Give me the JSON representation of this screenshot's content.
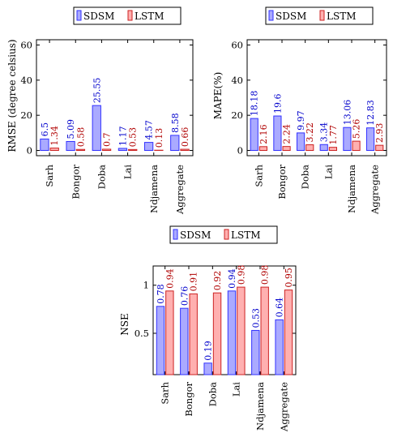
{
  "colors": {
    "sdsm_fill": "#aaaaff",
    "sdsm_stroke": "#3333ff",
    "sdsm_text": "#0000cc",
    "lstm_fill": "#ffb0b0",
    "lstm_stroke": "#cc2222",
    "lstm_text": "#b00000"
  },
  "chart_data": [
    {
      "type": "bar",
      "title": "",
      "ylabel": "RMSE (degree celsius)",
      "xlabel": "",
      "categories": [
        "Sarh",
        "Bongor",
        "Doba",
        "Lai",
        "Ndjamena",
        "Aggregate"
      ],
      "series": [
        {
          "name": "SDSM",
          "values": [
            6.5,
            5.09,
            25.55,
            1.17,
            4.57,
            8.58
          ]
        },
        {
          "name": "LSTM",
          "values": [
            1.34,
            0.58,
            0.7,
            0.53,
            0.13,
            0.66
          ]
        }
      ],
      "ylim": [
        -3,
        63
      ],
      "yticks": [
        0,
        20,
        40,
        60
      ],
      "legend": "top-center"
    },
    {
      "type": "bar",
      "title": "",
      "ylabel": "MAPE(%)",
      "xlabel": "",
      "categories": [
        "Sarh",
        "Bongor",
        "Doba",
        "Lai",
        "Ndjamena",
        "Aggregate"
      ],
      "series": [
        {
          "name": "SDSM",
          "values": [
            18.18,
            19.6,
            9.97,
            3.34,
            13.06,
            12.83
          ]
        },
        {
          "name": "LSTM",
          "values": [
            2.16,
            2.24,
            3.22,
            1.77,
            5.26,
            2.93
          ]
        }
      ],
      "ylim": [
        -3,
        63
      ],
      "yticks": [
        0,
        20,
        40,
        60
      ],
      "legend": "top-center"
    },
    {
      "type": "bar",
      "title": "",
      "ylabel": "NSE",
      "xlabel": "",
      "categories": [
        "Sarh",
        "Bongor",
        "Doba",
        "Lai",
        "Ndjamena",
        "Aggregate"
      ],
      "series": [
        {
          "name": "SDSM",
          "values": [
            0.78,
            0.76,
            0.19,
            0.94,
            0.53,
            0.64
          ]
        },
        {
          "name": "LSTM",
          "values": [
            0.94,
            0.91,
            0.92,
            0.98,
            0.98,
            0.95
          ]
        }
      ],
      "ylim": [
        0.07,
        1.2
      ],
      "yticks": [
        0.5,
        1
      ],
      "ytick_labels": [
        "0.5",
        "1"
      ],
      "legend": "top-center"
    }
  ]
}
